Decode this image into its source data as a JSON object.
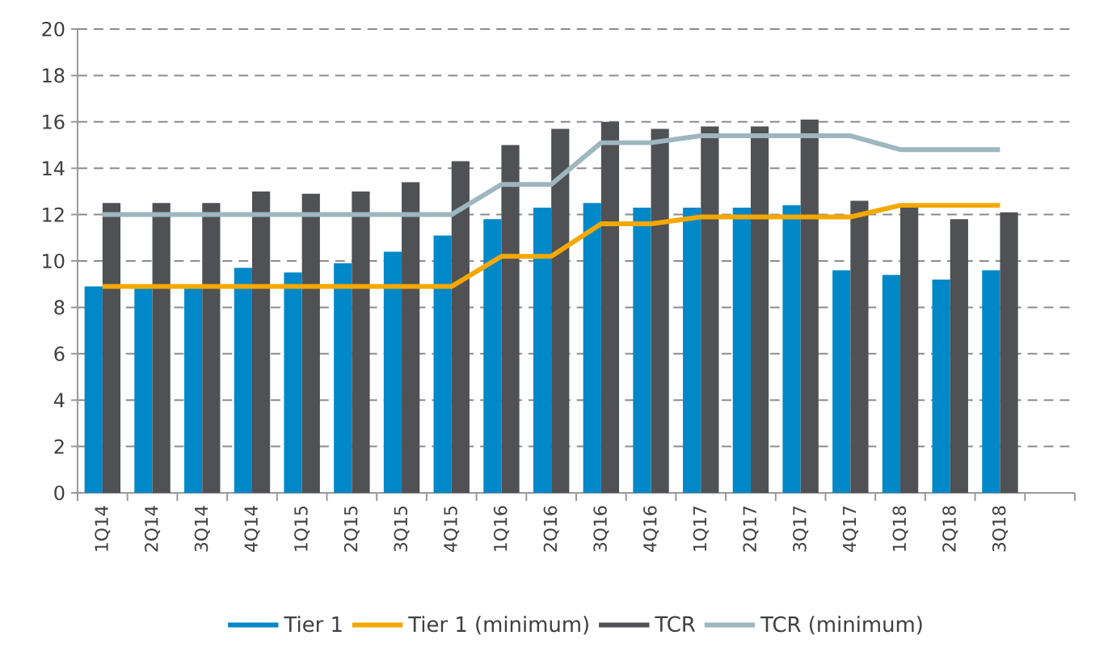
{
  "chart_data": {
    "type": "bar",
    "categories": [
      "1Q14",
      "2Q14",
      "3Q14",
      "4Q14",
      "1Q15",
      "2Q15",
      "3Q15",
      "4Q15",
      "1Q16",
      "2Q16",
      "3Q16",
      "4Q16",
      "1Q17",
      "2Q17",
      "3Q17",
      "4Q17",
      "1Q18",
      "2Q18",
      "3Q18",
      null
    ],
    "series": [
      {
        "name": "Tier 1",
        "color": "#0088c8",
        "values": [
          8.9,
          8.9,
          8.9,
          9.7,
          9.5,
          9.9,
          10.4,
          11.1,
          11.8,
          12.3,
          12.5,
          12.3,
          12.3,
          12.3,
          12.4,
          9.6,
          9.4,
          9.2,
          9.6,
          null
        ]
      },
      {
        "name": "Tier 1 (minimum)",
        "type": "line",
        "color": "#f5a800",
        "values": [
          8.9,
          8.9,
          8.9,
          8.9,
          8.9,
          8.9,
          8.9,
          8.9,
          10.2,
          10.2,
          11.6,
          11.6,
          11.9,
          11.9,
          11.9,
          11.9,
          12.4,
          12.4,
          12.4,
          null
        ]
      },
      {
        "name": "TCR",
        "color": "#505154",
        "values": [
          12.5,
          12.5,
          12.5,
          13.0,
          12.9,
          13.0,
          13.4,
          14.3,
          15.0,
          15.7,
          16.0,
          15.7,
          15.8,
          15.8,
          16.1,
          12.6,
          12.4,
          11.8,
          12.1,
          null
        ]
      },
      {
        "name": "TCR (minimum)",
        "type": "line",
        "color": "#9eb6bf",
        "values": [
          12.0,
          12.0,
          12.0,
          12.0,
          12.0,
          12.0,
          12.0,
          12.0,
          13.3,
          13.3,
          15.1,
          15.1,
          15.4,
          15.4,
          15.4,
          15.4,
          14.8,
          14.8,
          14.8,
          null
        ]
      }
    ],
    "ylim": [
      0,
      20
    ],
    "yticks": [
      0,
      2,
      4,
      6,
      8,
      10,
      12,
      14,
      16,
      18,
      20
    ],
    "grid": "y",
    "legend": "bottom"
  }
}
